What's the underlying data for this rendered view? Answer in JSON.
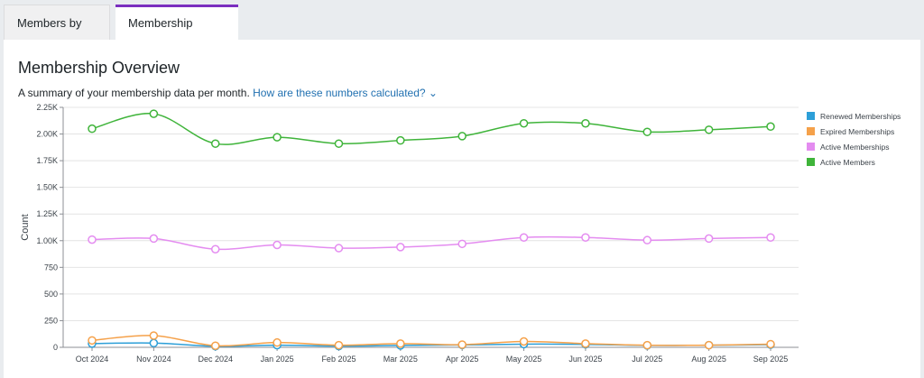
{
  "tabs": [
    {
      "label": "Members by Level",
      "active": false
    },
    {
      "label": "Membership Overview",
      "active": true
    }
  ],
  "page": {
    "title": "Membership Overview",
    "summary": "A summary of your membership data per month.",
    "help_link": "How are these numbers calculated?"
  },
  "colors": {
    "Renewed Memberships": "#2d9fd8",
    "Expired Memberships": "#f5a14a",
    "Active Memberships": "#e48cf0",
    "Active Members": "#3fb43a"
  },
  "chart_data": {
    "type": "line",
    "ylabel": "Count",
    "ylim": [
      0,
      2250
    ],
    "yticks": [
      "0",
      "250",
      "500",
      "750",
      "1.00K",
      "1.25K",
      "1.50K",
      "1.75K",
      "2.00K",
      "2.25K"
    ],
    "x": [
      "Oct 2024",
      "Nov 2024",
      "Dec 2024",
      "Jan 2025",
      "Feb 2025",
      "Mar 2025",
      "Apr 2025",
      "May 2025",
      "Jun 2025",
      "Jul 2025",
      "Aug 2025",
      "Sep 2025"
    ],
    "legend_position": "right",
    "series": [
      {
        "name": "Renewed Memberships",
        "values": [
          35,
          40,
          10,
          20,
          12,
          18,
          22,
          30,
          28,
          18,
          20,
          25
        ]
      },
      {
        "name": "Expired Memberships",
        "values": [
          65,
          110,
          15,
          45,
          20,
          35,
          25,
          55,
          35,
          20,
          20,
          30
        ]
      },
      {
        "name": "Active Memberships",
        "values": [
          1010,
          1020,
          920,
          960,
          930,
          940,
          970,
          1030,
          1030,
          1005,
          1020,
          1030
        ]
      },
      {
        "name": "Active Members",
        "values": [
          2050,
          2190,
          1910,
          1970,
          1910,
          1940,
          1980,
          2100,
          2100,
          2020,
          2040,
          2070
        ]
      }
    ]
  }
}
